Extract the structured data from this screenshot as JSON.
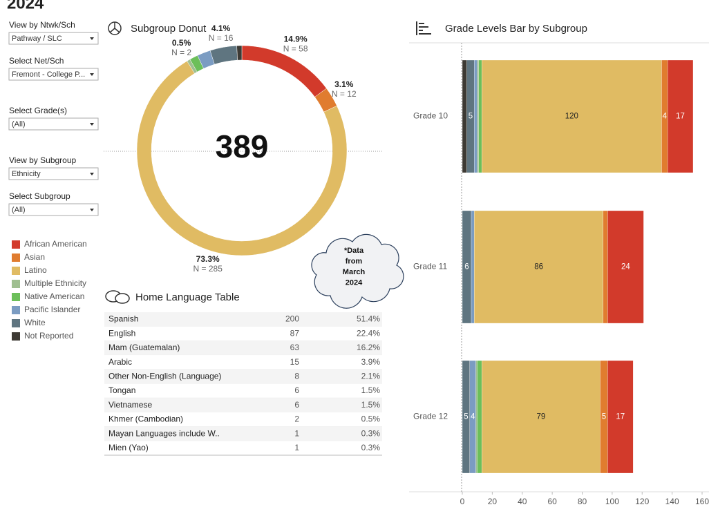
{
  "header": {
    "title": "2024"
  },
  "filters": [
    {
      "label": "View by Ntwk/Sch",
      "value": "Pathway / SLC"
    },
    {
      "label": "Select Net/Sch",
      "value": "Fremont - College P..."
    },
    {
      "label": "Select Grade(s)",
      "value": "(All)"
    },
    {
      "label": "View by Subgroup",
      "value": "Ethnicity"
    },
    {
      "label": "Select Subgroup",
      "value": "(All)"
    }
  ],
  "legend": [
    {
      "name": "African American",
      "color": "#d23a2b"
    },
    {
      "name": "Asian",
      "color": "#e07c2f"
    },
    {
      "name": "Latino",
      "color": "#e0bb63"
    },
    {
      "name": "Multiple Ethnicity",
      "color": "#9fbf90"
    },
    {
      "name": "Native American",
      "color": "#6cbf5a"
    },
    {
      "name": "Pacific Islander",
      "color": "#7b9cc2"
    },
    {
      "name": "White",
      "color": "#5f7580"
    },
    {
      "name": "Not Reported",
      "color": "#3d3a34"
    }
  ],
  "chart_data": [
    {
      "type": "donut",
      "title": "Subgroup Donut",
      "center_label": "389",
      "categories": [
        "African American",
        "Asian",
        "Latino",
        "Multiple Ethnicity",
        "Native American",
        "Pacific Islander",
        "White",
        "Not Reported"
      ],
      "values": [
        58,
        12,
        285,
        2,
        5,
        8,
        16,
        3
      ],
      "value_labels": [
        "N = 58",
        "N = 12",
        "N = 285",
        "N = 2",
        null,
        null,
        "N = 16",
        null
      ],
      "percents": [
        14.9,
        3.1,
        73.3,
        0.5,
        null,
        null,
        4.1,
        null
      ],
      "percent_labels": [
        "14.9%",
        "3.1%",
        "73.3%",
        "0.5%",
        null,
        null,
        "4.1%",
        null
      ],
      "colors": [
        "#d23a2b",
        "#e07c2f",
        "#e0bb63",
        "#9fbf90",
        "#6cbf5a",
        "#7b9cc2",
        "#5f7580",
        "#3d3a34"
      ]
    },
    {
      "type": "stacked_barh",
      "title": "Grade Levels Bar by Subgroup",
      "categories": [
        "Grade 10",
        "Grade 11",
        "Grade 12"
      ],
      "series": [
        {
          "name": "Not Reported",
          "color": "#3d3a34",
          "values": [
            3,
            0,
            0
          ]
        },
        {
          "name": "White",
          "color": "#5f7580",
          "values": [
            5,
            6,
            5
          ]
        },
        {
          "name": "Pacific Islander",
          "color": "#7b9cc2",
          "values": [
            2,
            2,
            4
          ]
        },
        {
          "name": "Multiple Ethnicity",
          "color": "#9fbf90",
          "values": [
            1,
            0,
            1
          ]
        },
        {
          "name": "Native American",
          "color": "#6cbf5a",
          "values": [
            2,
            0,
            3
          ]
        },
        {
          "name": "Latino",
          "color": "#e0bb63",
          "values": [
            120,
            86,
            79
          ]
        },
        {
          "name": "Asian",
          "color": "#e07c2f",
          "values": [
            4,
            3,
            5
          ]
        },
        {
          "name": "African American",
          "color": "#d23a2b",
          "values": [
            17,
            24,
            17
          ]
        }
      ],
      "xlim": [
        0,
        160
      ],
      "xticks": [
        0,
        20,
        40,
        60,
        80,
        100,
        120,
        140,
        160
      ]
    }
  ],
  "annotation": [
    "*Data",
    "from",
    "March",
    "2024"
  ],
  "table": {
    "title": "Home Language Table",
    "rows": [
      [
        "Spanish",
        200,
        "51.4%"
      ],
      [
        "English",
        87,
        "22.4%"
      ],
      [
        "Mam (Guatemalan)",
        63,
        "16.2%"
      ],
      [
        "Arabic",
        15,
        "3.9%"
      ],
      [
        "Other Non-English (Language)",
        8,
        "2.1%"
      ],
      [
        "Tongan",
        6,
        "1.5%"
      ],
      [
        "Vietnamese",
        6,
        "1.5%"
      ],
      [
        "Khmer (Cambodian)",
        2,
        "0.5%"
      ],
      [
        "Mayan Languages include  W..",
        1,
        "0.3%"
      ],
      [
        "Mien (Yao)",
        1,
        "0.3%"
      ]
    ]
  }
}
